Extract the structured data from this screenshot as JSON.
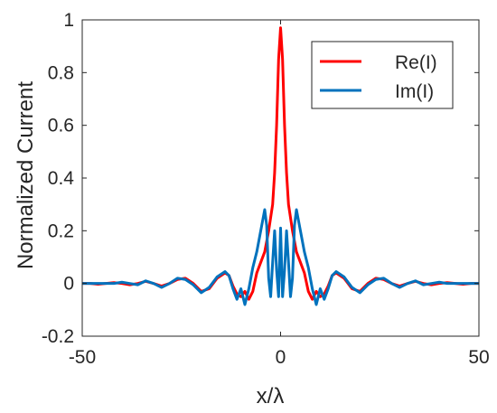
{
  "chart_data": {
    "type": "line",
    "title": "",
    "xlabel": "x/λ",
    "ylabel": "Normalized Current",
    "xlim": [
      -50,
      50
    ],
    "ylim": [
      -0.2,
      1
    ],
    "xticks": [
      -50,
      0,
      50
    ],
    "yticks": [
      -0.2,
      0,
      0.2,
      0.4,
      0.6,
      0.8,
      1
    ],
    "xtick_labels": [
      "-50",
      "0",
      "50"
    ],
    "ytick_labels": [
      "-0.2",
      "0",
      "0.2",
      "0.4",
      "0.6",
      "0.8",
      "1"
    ],
    "grid": false,
    "legend_position": "top-right",
    "series": [
      {
        "name": "Re(I)",
        "color": "#ff0000",
        "x": [
          -50,
          -48,
          -46,
          -44,
          -42,
          -40,
          -38,
          -36,
          -34,
          -32,
          -30,
          -28,
          -26,
          -24,
          -22,
          -20,
          -18,
          -16,
          -14,
          -13,
          -12,
          -11,
          -10,
          -9,
          -8,
          -7,
          -6,
          -5,
          -4,
          -3.5,
          -3,
          -2.5,
          -2,
          -1.5,
          -1,
          -0.5,
          0,
          0.5,
          1,
          1.5,
          2,
          2.5,
          3,
          3.5,
          4,
          5,
          6,
          7,
          8,
          9,
          10,
          11,
          12,
          13,
          14,
          16,
          18,
          20,
          22,
          24,
          26,
          28,
          30,
          32,
          34,
          36,
          38,
          40,
          42,
          44,
          46,
          48,
          50
        ],
        "y": [
          0,
          0,
          -0.003,
          0,
          0.003,
          0,
          -0.005,
          0,
          0.008,
          0,
          -0.01,
          0,
          0.015,
          0.02,
          0,
          -0.03,
          -0.02,
          0.02,
          0.04,
          0.03,
          -0.01,
          -0.04,
          -0.05,
          -0.03,
          -0.06,
          -0.03,
          0.04,
          0.08,
          0.12,
          0.16,
          0.2,
          0.25,
          0.3,
          0.42,
          0.6,
          0.85,
          0.97,
          0.85,
          0.6,
          0.42,
          0.3,
          0.25,
          0.2,
          0.16,
          0.12,
          0.08,
          0.04,
          -0.03,
          -0.06,
          -0.03,
          -0.05,
          -0.04,
          -0.01,
          0.03,
          0.04,
          0.02,
          -0.02,
          -0.03,
          0,
          0.02,
          0.015,
          0,
          -0.01,
          0,
          0.008,
          0,
          -0.005,
          0,
          0.003,
          0,
          -0.003,
          0,
          0
        ]
      },
      {
        "name": "Im(I)",
        "color": "#0072bd",
        "x": [
          -50,
          -48,
          -46,
          -44,
          -42,
          -40,
          -38,
          -36,
          -34,
          -32,
          -30,
          -28,
          -26,
          -24,
          -22,
          -20,
          -18,
          -16,
          -14,
          -13,
          -12,
          -11,
          -10,
          -9,
          -8,
          -7,
          -6,
          -5,
          -4,
          -3.5,
          -3,
          -2.5,
          -2,
          -1.5,
          -1,
          -0.5,
          0,
          0.5,
          1,
          1.5,
          2,
          2.5,
          3,
          3.5,
          4,
          5,
          6,
          7,
          8,
          9,
          10,
          11,
          12,
          13,
          14,
          16,
          18,
          20,
          22,
          24,
          26,
          28,
          30,
          32,
          34,
          36,
          38,
          40,
          42,
          44,
          46,
          48,
          50
        ],
        "y": [
          0,
          0,
          0,
          0,
          0,
          0.005,
          0,
          -0.005,
          0.01,
          0,
          -0.015,
          0,
          0.02,
          0.015,
          -0.005,
          -0.035,
          -0.015,
          0.025,
          0.045,
          0.03,
          -0.02,
          -0.06,
          -0.02,
          -0.08,
          -0.02,
          0.06,
          0.12,
          0.2,
          0.28,
          0.22,
          0.02,
          -0.05,
          0.08,
          0.2,
          0.05,
          -0.05,
          0.21,
          -0.05,
          0.05,
          0.2,
          0.08,
          -0.05,
          0.02,
          0.22,
          0.28,
          0.2,
          0.12,
          0.06,
          -0.02,
          -0.08,
          -0.02,
          -0.06,
          -0.02,
          0.03,
          0.045,
          0.025,
          -0.015,
          -0.035,
          -0.005,
          0.015,
          0.02,
          0,
          -0.015,
          0,
          0.01,
          -0.005,
          0,
          0.005,
          0,
          0,
          0,
          0,
          0
        ]
      }
    ]
  }
}
